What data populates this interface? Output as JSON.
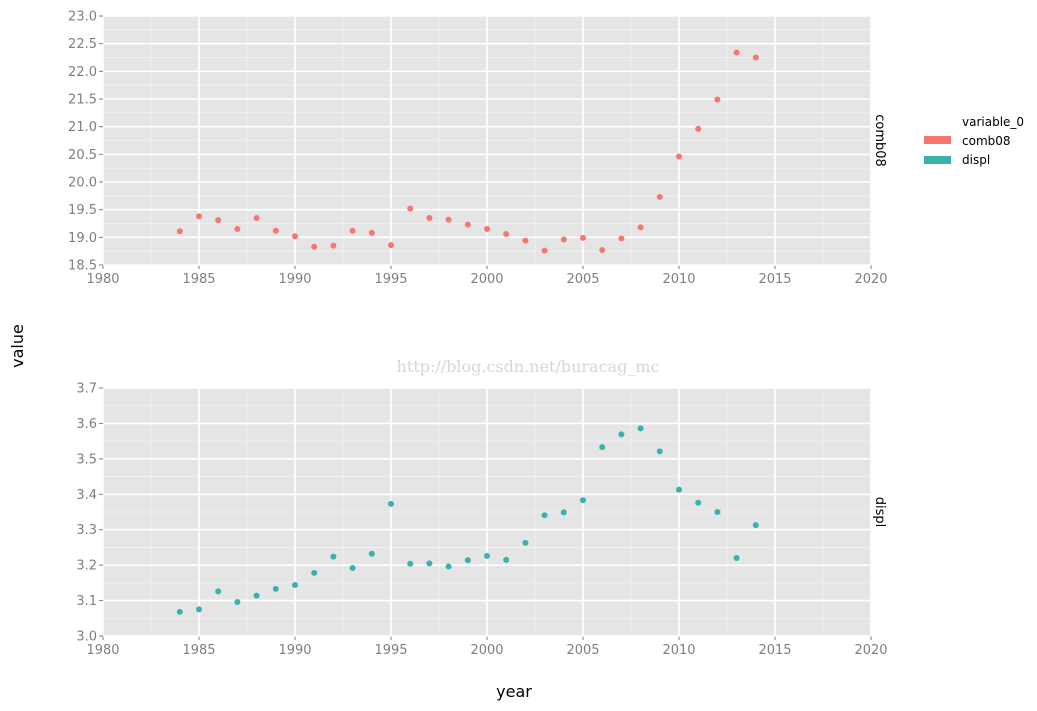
{
  "chart_data": {
    "type": "scatter",
    "xlabel": "year",
    "ylabel": "value",
    "watermark": "http://blog.csdn.net/buracag_mc",
    "legend": {
      "title": "variable_0",
      "placement": "right",
      "entries": [
        {
          "name": "comb08",
          "color": "#f8766d"
        },
        {
          "name": "displ",
          "color": "#38b2ad"
        }
      ]
    },
    "grid": true,
    "facets": [
      {
        "strip_label": "comb08",
        "color": "#f8766d",
        "xlim": [
          1980,
          2020
        ],
        "ylim": [
          18.5,
          23.0
        ],
        "x_ticks": [
          "1980",
          "1985",
          "1990",
          "1995",
          "2000",
          "2005",
          "2010",
          "2015",
          "2020"
        ],
        "y_ticks": [
          "18.5",
          "19.0",
          "19.5",
          "20.0",
          "20.5",
          "21.0",
          "21.5",
          "22.0",
          "22.5",
          "23.0"
        ],
        "x": [
          1984,
          1985,
          1986,
          1987,
          1988,
          1989,
          1990,
          1991,
          1992,
          1993,
          1994,
          1995,
          1996,
          1997,
          1998,
          1999,
          2000,
          2001,
          2002,
          2003,
          2004,
          2005,
          2006,
          2007,
          2008,
          2009,
          2010,
          2011,
          2012,
          2013,
          2014
        ],
        "y": [
          19.11,
          19.38,
          19.31,
          19.15,
          19.35,
          19.12,
          19.02,
          18.83,
          18.85,
          19.12,
          19.08,
          18.86,
          19.52,
          19.35,
          19.32,
          19.23,
          19.15,
          19.06,
          18.94,
          18.76,
          18.96,
          18.99,
          18.77,
          18.98,
          19.18,
          19.73,
          20.46,
          20.96,
          21.49,
          22.34,
          22.25
        ]
      },
      {
        "strip_label": "displ",
        "color": "#38b2ad",
        "xlim": [
          1980,
          2020
        ],
        "ylim": [
          3.0,
          3.7
        ],
        "x_ticks": [
          "1980",
          "1985",
          "1990",
          "1995",
          "2000",
          "2005",
          "2010",
          "2015",
          "2020"
        ],
        "y_ticks": [
          "3.0",
          "3.1",
          "3.2",
          "3.3",
          "3.4",
          "3.5",
          "3.6",
          "3.7"
        ],
        "x": [
          1984,
          1985,
          1986,
          1987,
          1988,
          1989,
          1990,
          1991,
          1992,
          1993,
          1994,
          1995,
          1996,
          1997,
          1998,
          1999,
          2000,
          2001,
          2002,
          2003,
          2004,
          2005,
          2006,
          2007,
          2008,
          2009,
          2010,
          2011,
          2012,
          2013,
          2014
        ],
        "y": [
          3.068,
          3.075,
          3.126,
          3.096,
          3.114,
          3.133,
          3.144,
          3.178,
          3.224,
          3.192,
          3.232,
          3.373,
          3.204,
          3.205,
          3.196,
          3.214,
          3.226,
          3.215,
          3.263,
          3.341,
          3.349,
          3.383,
          3.533,
          3.569,
          3.586,
          3.521,
          3.413,
          3.376,
          3.35,
          3.22,
          3.313
        ]
      }
    ]
  }
}
